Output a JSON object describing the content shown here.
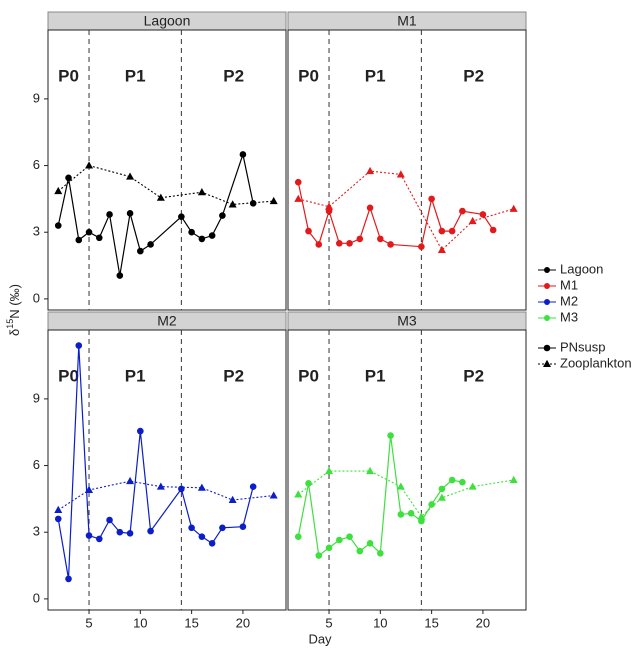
{
  "chart_data": {
    "type": "line",
    "xlabel": "Day",
    "ylabel_parts": [
      "δ",
      "15",
      "N (‰)"
    ],
    "xlim": [
      1,
      24.2
    ],
    "ylim": [
      -0.5,
      12.1
    ],
    "xticks": [
      5,
      10,
      15,
      20
    ],
    "yticks": [
      0,
      3,
      6,
      9
    ],
    "phase_lines": [
      5,
      14
    ],
    "phase_labels": [
      "P0",
      "P1",
      "P2"
    ],
    "panels": [
      {
        "title": "Lagoon",
        "color": "#000000",
        "series": [
          {
            "name": "PNsusp",
            "x": [
              2,
              3,
              4,
              5,
              6,
              7,
              8,
              9,
              10,
              11,
              14,
              15,
              16,
              17,
              18,
              20,
              21
            ],
            "values": [
              3.3,
              5.45,
              2.65,
              3.0,
              2.75,
              3.8,
              1.05,
              3.85,
              2.15,
              2.45,
              3.7,
              3.0,
              2.7,
              2.85,
              3.75,
              6.5,
              4.3
            ]
          },
          {
            "name": "Zooplankton",
            "x": [
              2,
              5,
              9,
              12,
              16,
              19,
              23
            ],
            "values": [
              4.85,
              6.0,
              5.5,
              4.55,
              4.8,
              4.25,
              4.4
            ]
          }
        ]
      },
      {
        "title": "M1",
        "color": "#e31a1c",
        "series": [
          {
            "name": "PNsusp",
            "x": [
              2,
              3,
              4,
              5,
              6,
              7,
              8,
              9,
              10,
              11,
              14,
              15,
              16,
              17,
              18,
              20,
              21
            ],
            "values": [
              5.25,
              3.05,
              2.45,
              3.95,
              2.5,
              2.5,
              2.7,
              4.1,
              2.7,
              2.45,
              2.35,
              4.5,
              3.05,
              3.05,
              3.95,
              3.8,
              3.1
            ]
          },
          {
            "name": "Zooplankton",
            "x": [
              2,
              5,
              9,
              12,
              16,
              19,
              23
            ],
            "values": [
              4.5,
              4.15,
              5.75,
              5.6,
              2.2,
              3.5,
              4.05
            ]
          }
        ]
      },
      {
        "title": "M2",
        "color": "#0b1ec8",
        "series": [
          {
            "name": "PNsusp",
            "x": [
              2,
              3,
              4,
              5,
              6,
              7,
              8,
              9,
              10,
              11,
              14,
              15,
              16,
              17,
              18,
              20,
              21
            ],
            "values": [
              3.6,
              0.9,
              11.4,
              2.85,
              2.7,
              3.55,
              3.0,
              2.95,
              7.55,
              3.05,
              4.95,
              3.2,
              2.8,
              2.5,
              3.2,
              3.25,
              5.05
            ]
          },
          {
            "name": "Zooplankton",
            "x": [
              2,
              5,
              9,
              12,
              16,
              19,
              23
            ],
            "values": [
              4.0,
              4.9,
              5.3,
              5.05,
              5.0,
              4.45,
              4.65
            ]
          }
        ]
      },
      {
        "title": "M3",
        "color": "#3ee03e",
        "series": [
          {
            "name": "PNsusp",
            "x": [
              2,
              3,
              4,
              5,
              6,
              7,
              8,
              9,
              10,
              11,
              12,
              13,
              14,
              15,
              16,
              17,
              18
            ],
            "values": [
              2.8,
              5.2,
              1.95,
              2.3,
              2.65,
              2.8,
              2.15,
              2.5,
              2.05,
              7.35,
              3.8,
              3.85,
              3.5,
              4.25,
              4.95,
              5.35,
              5.25
            ]
          },
          {
            "name": "Zooplankton",
            "x": [
              2,
              5,
              9,
              12,
              14,
              16,
              19,
              23
            ],
            "values": [
              4.7,
              5.75,
              5.75,
              5.05,
              3.7,
              4.55,
              5.05,
              5.35
            ]
          }
        ]
      }
    ]
  }
}
